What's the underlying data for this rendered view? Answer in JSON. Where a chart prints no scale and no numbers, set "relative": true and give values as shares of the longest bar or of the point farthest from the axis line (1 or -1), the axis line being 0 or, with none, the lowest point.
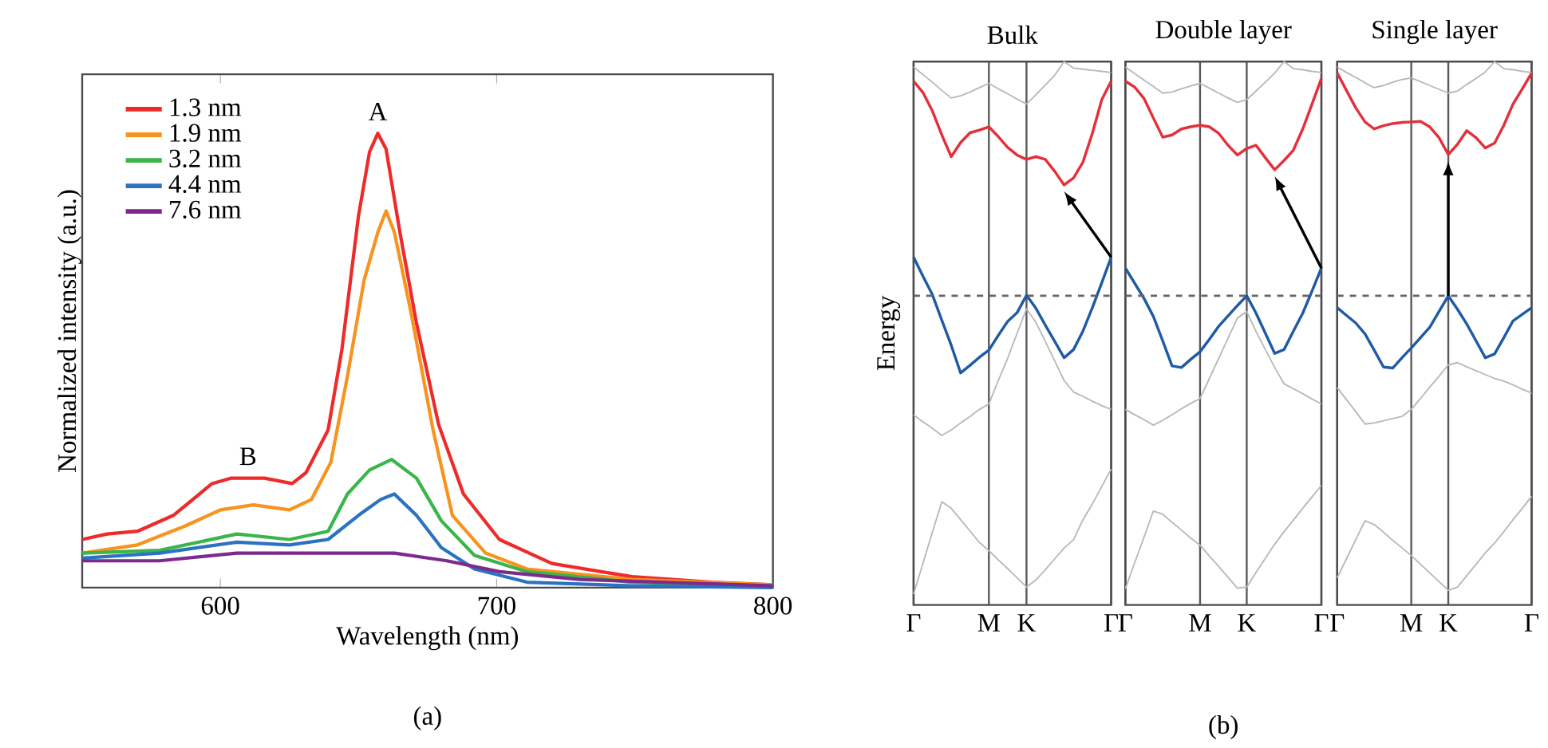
{
  "chart_data": [
    {
      "type": "line",
      "relative": true,
      "xlabel": "Wavelength (nm)",
      "ylabel": "Normalized intensity (a.u.)",
      "xlim": [
        550,
        800
      ],
      "xticks": [
        600,
        700,
        800
      ],
      "legend": "top left",
      "annotations": [
        {
          "text": "A",
          "x": 657,
          "y": 1.0
        },
        {
          "text": "B",
          "x": 610,
          "y": 0.241
        },
        "(a)"
      ],
      "series": [
        {
          "name": "1.3 nm",
          "color": "#ee2a2a",
          "x": [
            550,
            559,
            570,
            583,
            597,
            604,
            616,
            626,
            631,
            639,
            644,
            650,
            654,
            657,
            660,
            665,
            671,
            679,
            688,
            701,
            720,
            749,
            778,
            800
          ],
          "values": [
            0.106,
            0.118,
            0.124,
            0.159,
            0.229,
            0.241,
            0.241,
            0.229,
            0.253,
            0.347,
            0.524,
            0.818,
            0.959,
            1.0,
            0.965,
            0.782,
            0.582,
            0.359,
            0.206,
            0.106,
            0.053,
            0.024,
            0.012,
            0.006
          ]
        },
        {
          "name": "1.9 nm",
          "color": "#f7931e",
          "x": [
            550,
            570,
            587,
            600,
            612,
            625,
            633,
            640,
            646,
            652,
            657,
            660,
            663,
            669,
            677,
            684,
            696,
            711,
            749,
            800
          ],
          "values": [
            0.076,
            0.094,
            0.135,
            0.171,
            0.182,
            0.171,
            0.194,
            0.276,
            0.465,
            0.676,
            0.782,
            0.829,
            0.782,
            0.606,
            0.347,
            0.159,
            0.076,
            0.041,
            0.018,
            0.006
          ]
        },
        {
          "name": "3.2 nm",
          "color": "#39b54a",
          "x": [
            550,
            578,
            606,
            625,
            639,
            646,
            654,
            662,
            671,
            680,
            692,
            711,
            749,
            800
          ],
          "values": [
            0.076,
            0.082,
            0.118,
            0.106,
            0.124,
            0.206,
            0.259,
            0.282,
            0.241,
            0.147,
            0.071,
            0.035,
            0.012,
            0.004
          ]
        },
        {
          "name": "4.4 nm",
          "color": "#2b72c2",
          "x": [
            550,
            578,
            606,
            625,
            639,
            650,
            658,
            663,
            671,
            680,
            692,
            711,
            749,
            800
          ],
          "values": [
            0.065,
            0.076,
            0.1,
            0.094,
            0.106,
            0.159,
            0.194,
            0.206,
            0.159,
            0.088,
            0.041,
            0.012,
            0.004,
            0.0
          ]
        },
        {
          "name": "7.6 nm",
          "color": "#7d2a8e",
          "x": [
            550,
            578,
            606,
            635,
            663,
            682,
            701,
            730,
            800
          ],
          "values": [
            0.059,
            0.059,
            0.076,
            0.076,
            0.076,
            0.059,
            0.035,
            0.018,
            0.004
          ]
        }
      ]
    },
    {
      "type": "line",
      "relative": true,
      "title": "Bulk",
      "ylabel": "Energy",
      "grid": "x",
      "tick_labels": "x",
      "categories": [
        "Γ",
        null,
        null,
        null,
        null,
        null,
        null,
        null,
        "M",
        null,
        null,
        null,
        "K",
        null,
        null,
        null,
        null,
        null,
        null,
        null,
        null,
        "Γ"
      ],
      "ref_lines": [
        {
          "axis": "y",
          "value": 0.569,
          "line_style": "dashed",
          "color": "#666666"
        }
      ],
      "series": [
        {
          "color": "#b8b8b8",
          "values": [
            0.99,
            0.976,
            0.962,
            0.947,
            0.933,
            0.937,
            0.944,
            0.952,
            0.96,
            0.95,
            0.941,
            0.931,
            0.922,
            0.939,
            0.957,
            0.975,
            1.0,
            0.988,
            0.986,
            0.984,
            0.982,
            0.98
          ]
        },
        {
          "color": "#b8b8b8",
          "values": [
            0.35,
            0.337,
            0.325,
            0.312,
            0.322,
            0.335,
            0.347,
            0.36,
            0.37,
            0.413,
            0.454,
            0.5,
            0.545,
            0.52,
            0.485,
            0.449,
            0.413,
            0.392,
            0.384,
            0.375,
            0.367,
            0.36
          ]
        },
        {
          "color": "#b8b8b8",
          "values": [
            0.02,
            0.077,
            0.134,
            0.19,
            0.178,
            0.157,
            0.136,
            0.115,
            0.1,
            0.083,
            0.067,
            0.05,
            0.033,
            0.046,
            0.065,
            0.085,
            0.105,
            0.12,
            0.157,
            0.186,
            0.218,
            0.25
          ]
        },
        {
          "color": "#e3303a",
          "values": [
            0.964,
            0.943,
            0.909,
            0.865,
            0.825,
            0.851,
            0.869,
            0.874,
            0.88,
            0.862,
            0.842,
            0.828,
            0.82,
            0.825,
            0.82,
            0.798,
            0.773,
            0.786,
            0.815,
            0.868,
            0.93,
            0.964
          ]
        },
        {
          "color": "#1f5aa6",
          "values": [
            0.64,
            0.605,
            0.571,
            0.524,
            0.478,
            0.427,
            0.441,
            0.456,
            0.469,
            0.496,
            0.522,
            0.538,
            0.57,
            0.546,
            0.515,
            0.485,
            0.455,
            0.47,
            0.504,
            0.547,
            0.593,
            0.64
          ]
        }
      ]
    },
    {
      "type": "line",
      "relative": true,
      "title": "Double layer",
      "grid": "x",
      "tick_labels": "x",
      "categories": [
        "Γ",
        null,
        null,
        null,
        null,
        null,
        null,
        null,
        "M",
        null,
        null,
        null,
        null,
        "K",
        null,
        null,
        null,
        null,
        null,
        null,
        null,
        "Γ"
      ],
      "annotations": [
        "(b)"
      ],
      "ref_lines": [
        {
          "axis": "y",
          "value": 0.569,
          "line_style": "dashed",
          "color": "#666666"
        }
      ],
      "series": [
        {
          "color": "#b8b8b8",
          "values": [
            0.99,
            0.978,
            0.966,
            0.954,
            0.942,
            0.944,
            0.95,
            0.955,
            0.96,
            0.951,
            0.942,
            0.933,
            0.925,
            0.93,
            0.946,
            0.962,
            0.979,
            1.0,
            0.987,
            0.985,
            0.982,
            0.98
          ]
        },
        {
          "color": "#b8b8b8",
          "values": [
            0.36,
            0.35,
            0.341,
            0.331,
            0.34,
            0.35,
            0.361,
            0.371,
            0.38,
            0.417,
            0.454,
            0.491,
            0.528,
            0.54,
            0.503,
            0.47,
            0.437,
            0.407,
            0.398,
            0.389,
            0.379,
            0.37
          ]
        },
        {
          "color": "#b8b8b8",
          "values": [
            0.03,
            0.078,
            0.125,
            0.173,
            0.167,
            0.152,
            0.138,
            0.123,
            0.11,
            0.09,
            0.071,
            0.051,
            0.031,
            0.033,
            0.06,
            0.086,
            0.112,
            0.135,
            0.156,
            0.178,
            0.199,
            0.22
          ]
        },
        {
          "color": "#e3303a",
          "values": [
            0.964,
            0.953,
            0.932,
            0.896,
            0.861,
            0.865,
            0.876,
            0.88,
            0.883,
            0.88,
            0.868,
            0.846,
            0.828,
            0.84,
            0.846,
            0.823,
            0.801,
            0.818,
            0.837,
            0.876,
            0.922,
            0.969
          ]
        },
        {
          "color": "#1f5aa6",
          "values": [
            0.62,
            0.592,
            0.564,
            0.531,
            0.486,
            0.44,
            0.437,
            0.452,
            0.466,
            0.489,
            0.513,
            0.532,
            0.551,
            0.569,
            0.537,
            0.5,
            0.463,
            0.47,
            0.504,
            0.537,
            0.578,
            0.62
          ]
        }
      ]
    },
    {
      "type": "line",
      "relative": true,
      "title": "Single layer",
      "grid": "x",
      "tick_labels": "x",
      "categories": [
        "Γ",
        null,
        null,
        null,
        null,
        null,
        null,
        null,
        "M",
        null,
        null,
        null,
        "K",
        null,
        null,
        null,
        null,
        null,
        null,
        null,
        null,
        "Γ"
      ],
      "ref_lines": [
        {
          "axis": "y",
          "value": 0.569,
          "line_style": "dashed",
          "color": "#666666"
        }
      ],
      "series": [
        {
          "color": "#b8b8b8",
          "values": [
            0.99,
            0.98,
            0.971,
            0.961,
            0.952,
            0.956,
            0.962,
            0.967,
            0.97,
            0.963,
            0.956,
            0.949,
            0.942,
            0.946,
            0.958,
            0.969,
            0.981,
            1.0,
            0.987,
            0.985,
            0.982,
            0.98
          ]
        },
        {
          "color": "#b8b8b8",
          "values": [
            0.4,
            0.378,
            0.356,
            0.333,
            0.335,
            0.339,
            0.343,
            0.347,
            0.36,
            0.38,
            0.401,
            0.421,
            0.442,
            0.446,
            0.438,
            0.431,
            0.424,
            0.417,
            0.412,
            0.405,
            0.397,
            0.39
          ]
        },
        {
          "color": "#b8b8b8",
          "values": [
            0.05,
            0.085,
            0.12,
            0.155,
            0.148,
            0.134,
            0.119,
            0.105,
            0.091,
            0.075,
            0.059,
            0.043,
            0.027,
            0.033,
            0.054,
            0.075,
            0.096,
            0.114,
            0.135,
            0.157,
            0.178,
            0.2
          ]
        },
        {
          "color": "#e3303a",
          "values": [
            0.979,
            0.947,
            0.915,
            0.889,
            0.876,
            0.882,
            0.886,
            0.888,
            0.889,
            0.89,
            0.88,
            0.86,
            0.829,
            0.848,
            0.873,
            0.86,
            0.841,
            0.85,
            0.883,
            0.922,
            0.95,
            0.979
          ]
        },
        {
          "color": "#1f5aa6",
          "values": [
            0.547,
            0.533,
            0.519,
            0.499,
            0.469,
            0.438,
            0.436,
            0.455,
            0.473,
            0.492,
            0.511,
            0.54,
            0.569,
            0.544,
            0.517,
            0.486,
            0.455,
            0.462,
            0.492,
            0.523,
            0.535,
            0.547
          ]
        }
      ]
    }
  ]
}
